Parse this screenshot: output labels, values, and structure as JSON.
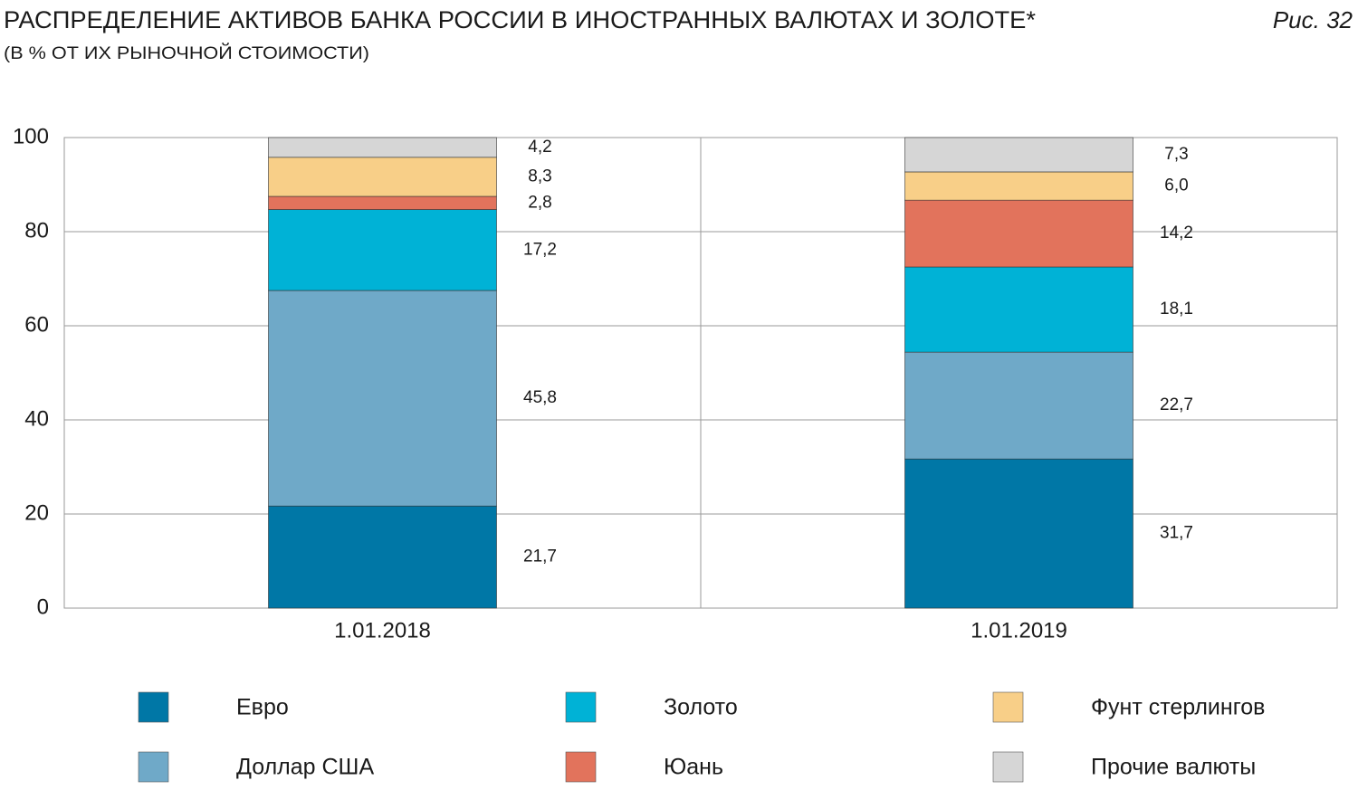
{
  "chart_data": {
    "type": "bar",
    "stacked": true,
    "title": "РАСПРЕДЕЛЕНИЕ АКТИВОВ БАНКА РОССИИ В ИНОСТРАННЫХ ВАЛЮТАХ И ЗОЛОТЕ*",
    "subtitle": "(В % ОТ ИХ РЫНОЧНОЙ СТОИМОСТИ)",
    "figure_label": "Рис. 32",
    "categories": [
      "1.01.2018",
      "1.01.2019"
    ],
    "series": [
      {
        "name": "Евро",
        "color": "#0077a6",
        "values": [
          21.7,
          31.7
        ],
        "value_labels": [
          "21,7",
          "31,7"
        ]
      },
      {
        "name": "Доллар США",
        "color": "#6fa9c8",
        "values": [
          45.8,
          22.7
        ],
        "value_labels": [
          "45,8",
          "22,7"
        ]
      },
      {
        "name": "Золото",
        "color": "#00b2d6",
        "values": [
          17.2,
          18.1
        ],
        "value_labels": [
          "17,2",
          "18,1"
        ]
      },
      {
        "name": "Юань",
        "color": "#e2735c",
        "values": [
          2.8,
          14.2
        ],
        "value_labels": [
          "2,8",
          "14,2"
        ]
      },
      {
        "name": "Фунт стерлингов",
        "color": "#f8cf88",
        "values": [
          8.3,
          6.0
        ],
        "value_labels": [
          "8,3",
          "6,0"
        ]
      },
      {
        "name": "Прочие валюты",
        "color": "#d6d6d6",
        "values": [
          4.2,
          7.3
        ],
        "value_labels": [
          "4,2",
          "7,3"
        ]
      }
    ],
    "ylim": [
      0,
      100
    ],
    "yticks": [
      0,
      20,
      40,
      60,
      80,
      100
    ],
    "grid": true
  }
}
